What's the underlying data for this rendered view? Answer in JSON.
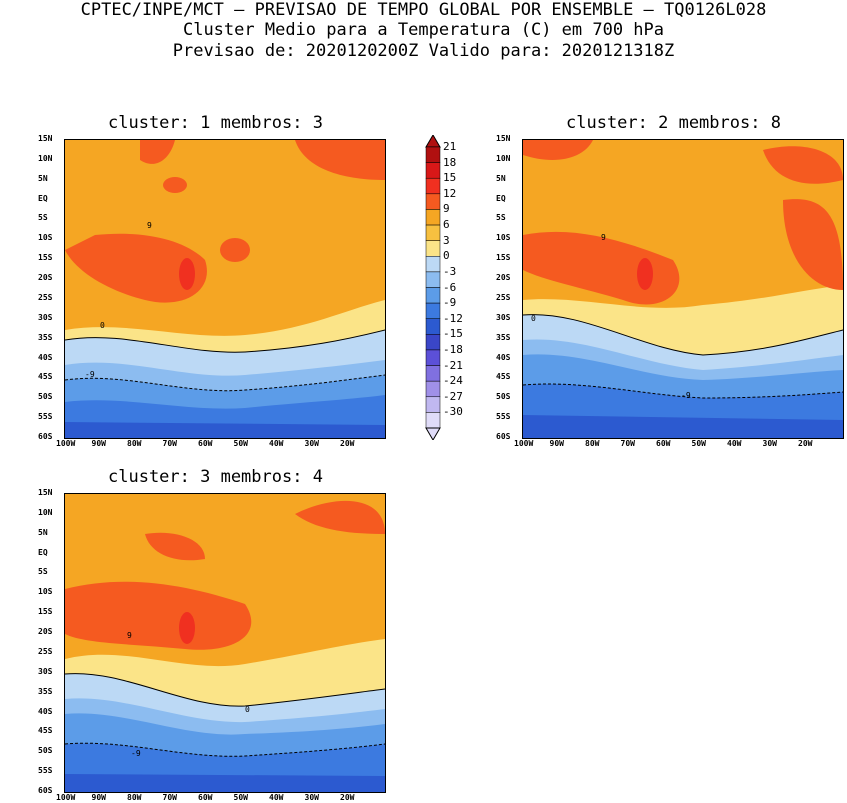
{
  "header": {
    "line1": "CPTEC/INPE/MCT – PREVISAO DE TEMPO GLOBAL POR ENSEMBLE – TQ0126L028",
    "line2": "Cluster Medio para a Temperatura (C) em 700 hPa",
    "line3": "Previsao de: 2020120200Z   Valido para: 2020121318Z"
  },
  "panels": [
    {
      "title": "cluster: 1  membros: 3"
    },
    {
      "title": "cluster: 2  membros: 8"
    },
    {
      "title": "cluster: 3  membros: 4"
    }
  ],
  "axes": {
    "lat_labels": [
      "15N",
      "10N",
      "5N",
      "EQ",
      "5S",
      "10S",
      "15S",
      "20S",
      "25S",
      "30S",
      "35S",
      "40S",
      "45S",
      "50S",
      "55S",
      "60S"
    ],
    "lon_labels": [
      "100W",
      "90W",
      "80W",
      "70W",
      "60W",
      "50W",
      "40W",
      "30W",
      "20W"
    ]
  },
  "colorbar": {
    "labels": [
      "21",
      "18",
      "15",
      "12",
      "9",
      "6",
      "3",
      "0",
      "-3",
      "-6",
      "-9",
      "-12",
      "-15",
      "-18",
      "-21",
      "-24",
      "-27",
      "-30"
    ],
    "colors": [
      "#b01010",
      "#d81818",
      "#f03020",
      "#f55a20",
      "#f5a623",
      "#f7c040",
      "#fbe488",
      "#bcd9f5",
      "#8cbcf0",
      "#5c9ce8",
      "#3c7ae0",
      "#2c5ad0",
      "#3a46c8",
      "#5c50d8",
      "#8070e0",
      "#a090e8",
      "#c0b8f0",
      "#e0dcf8"
    ],
    "contour_labels": [
      "9",
      "0",
      "-9"
    ]
  }
}
